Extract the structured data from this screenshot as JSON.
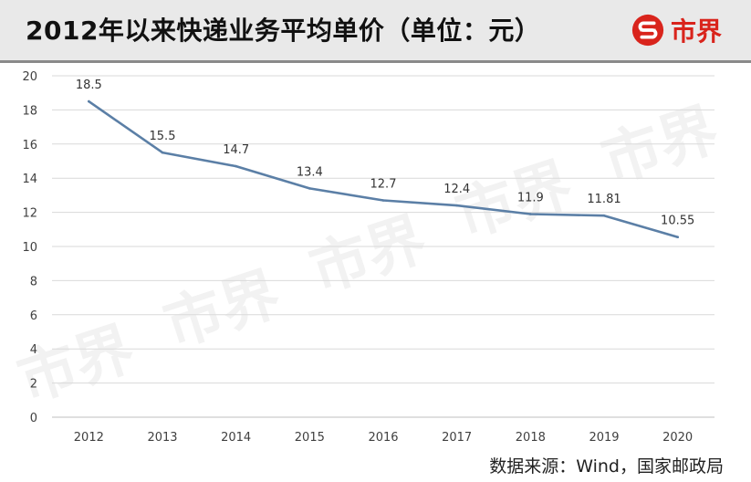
{
  "header": {
    "title": "2012年以来快递业务平均单价（单位：元）",
    "brand": "市界"
  },
  "watermark": "市界",
  "source": "数据来源：Wind，国家邮政局",
  "colors": {
    "line": "#5b7fa6",
    "brand_red": "#d9241c",
    "grid": "#d9d9d9",
    "header_bg": "#e9e9e9"
  },
  "chart_data": {
    "type": "line",
    "title": "2012年以来快递业务平均单价（单位：元）",
    "categories": [
      "2012",
      "2013",
      "2014",
      "2015",
      "2016",
      "2017",
      "2018",
      "2019",
      "2020"
    ],
    "values": [
      18.5,
      15.5,
      14.7,
      13.4,
      12.7,
      12.4,
      11.9,
      11.81,
      10.55
    ],
    "data_labels": [
      "18.5",
      "15.5",
      "14.7",
      "13.4",
      "12.7",
      "12.4",
      "11.9",
      "11.81",
      "10.55"
    ],
    "yticks": [
      "0",
      "2",
      "4",
      "6",
      "8",
      "10",
      "12",
      "14",
      "16",
      "18",
      "20"
    ],
    "ylim": [
      0,
      20
    ],
    "grid": true,
    "legend": "none",
    "xlabel": "",
    "ylabel": ""
  }
}
